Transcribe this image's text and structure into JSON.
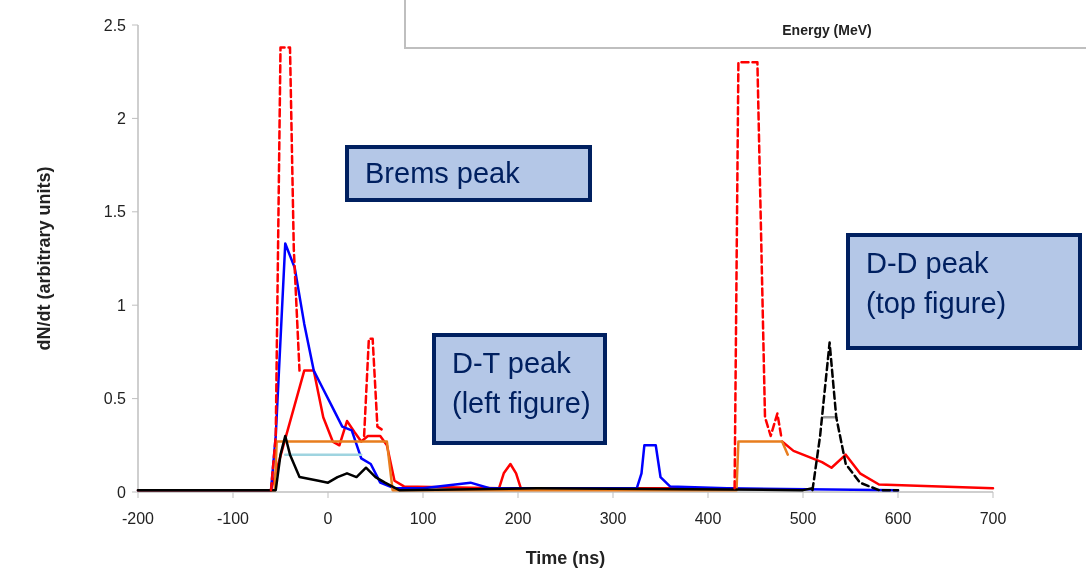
{
  "chart_data": {
    "type": "line",
    "xlabel": "Time (ns)",
    "ylabel": "dN/dt (arbitrary units)",
    "xlim": [
      -200,
      700
    ],
    "xticks": [
      -200,
      -100,
      0,
      100,
      200,
      300,
      400,
      500,
      600,
      700
    ],
    "ylim": [
      0,
      2.5
    ],
    "yticks": [
      0,
      0.5,
      1,
      1.5,
      2,
      2.5
    ],
    "grid": false,
    "annotations": [
      "Brems peak",
      "D-T peak\n(left figure)",
      "D-D peak\n(top figure)",
      "Energy (MeV)"
    ],
    "series": [
      {
        "color": "#ff0000",
        "line_style": "solid",
        "x": [
          -200,
          -60,
          -25,
          -15,
          -5,
          5,
          12,
          20,
          28,
          35,
          42,
          55,
          62,
          70,
          80,
          180,
          185,
          192,
          198,
          203,
          420,
          430,
          null,
          478,
          490,
          500,
          520,
          530,
          545,
          560,
          580,
          700
        ],
        "values": [
          0.01,
          0.01,
          0.65,
          0.65,
          0.4,
          0.27,
          0.25,
          0.38,
          0.32,
          0.27,
          0.3,
          0.3,
          0.25,
          0.06,
          0.03,
          0.02,
          0.1,
          0.15,
          0.1,
          0.02,
          0.02,
          0.02,
          null,
          0.27,
          0.22,
          0.2,
          0.16,
          0.13,
          0.2,
          0.1,
          0.04,
          0.02
        ]
      },
      {
        "color": "#0000ff",
        "line_style": "solid",
        "x": [
          -200,
          -60,
          -55,
          -45,
          -35,
          -25,
          -15,
          -5,
          5,
          15,
          25,
          35,
          45,
          55,
          70,
          100,
          150,
          170,
          325,
          330,
          333,
          345,
          350,
          360,
          420,
          600
        ],
        "values": [
          0.01,
          0.01,
          0.3,
          1.33,
          1.2,
          0.9,
          0.65,
          0.55,
          0.45,
          0.35,
          0.33,
          0.18,
          0.15,
          0.05,
          0.02,
          0.02,
          0.05,
          0.02,
          0.02,
          0.1,
          0.25,
          0.25,
          0.08,
          0.03,
          0.02,
          0.01
        ]
      },
      {
        "color": "#e87d1e",
        "line_style": "solid",
        "x": [
          -200,
          -56,
          -54,
          62,
          68,
          430,
          432,
          478,
          484
        ],
        "values": [
          0.01,
          0.01,
          0.27,
          0.27,
          0.01,
          0.01,
          0.27,
          0.27,
          0.2
        ]
      },
      {
        "color": "#9fd4e0",
        "line_style": "solid",
        "x": [
          -45,
          35
        ],
        "values": [
          0.2,
          0.2
        ]
      },
      {
        "color": "#999999",
        "line_style": "solid",
        "x": [
          522,
          535
        ],
        "values": [
          0.4,
          0.4
        ]
      },
      {
        "color": "#000000",
        "line_style": "solid",
        "x": [
          -200,
          -55,
          -50,
          -45,
          -40,
          -30,
          -10,
          0,
          10,
          20,
          30,
          40,
          50,
          60,
          75,
          220,
          500,
          510
        ],
        "values": [
          0.01,
          0.01,
          0.2,
          0.3,
          0.2,
          0.08,
          0.06,
          0.05,
          0.08,
          0.1,
          0.08,
          0.13,
          0.08,
          0.05,
          0.01,
          0.02,
          0.01,
          0.02
        ]
      },
      {
        "color": "#000000",
        "line_style": "dashed",
        "x": [
          510,
          518,
          528,
          535,
          545,
          560,
          580,
          600
        ],
        "values": [
          0.01,
          0.3,
          0.8,
          0.4,
          0.15,
          0.05,
          0.01,
          0.01
        ]
      },
      {
        "color": "#ff0000",
        "line_style": "dashed",
        "x": [
          -60,
          -55,
          -50,
          -40,
          -36,
          -30,
          null,
          38,
          43,
          47,
          52,
          58,
          null,
          428,
          432,
          452,
          460,
          466,
          473,
          477
        ],
        "values": [
          0.01,
          0.3,
          2.38,
          2.38,
          1.3,
          0.65,
          null,
          0.3,
          0.82,
          0.82,
          0.35,
          0.33,
          null,
          0.02,
          2.3,
          2.3,
          0.4,
          0.3,
          0.42,
          0.3
        ]
      }
    ]
  }
}
